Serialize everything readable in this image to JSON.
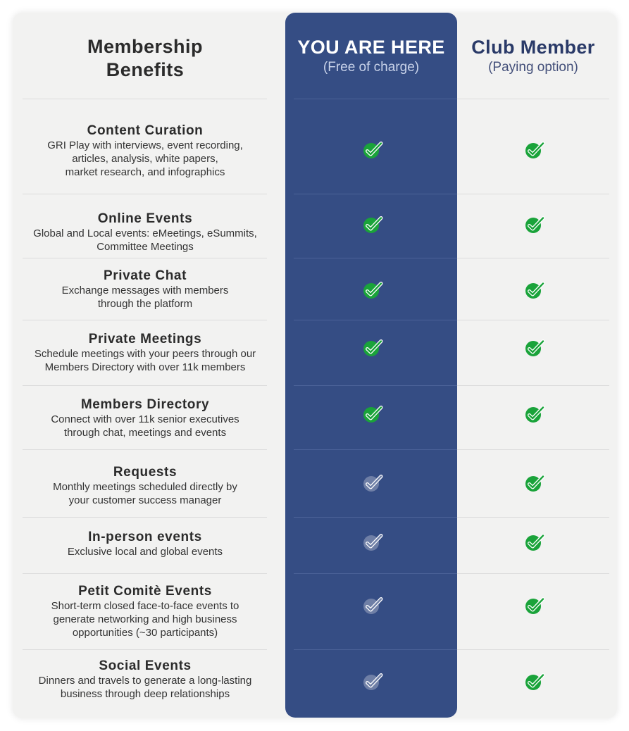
{
  "header": {
    "benefits_line1": "Membership",
    "benefits_line2": "Benefits"
  },
  "plans": {
    "free": {
      "title": "YOU ARE HERE",
      "subtitle": "(Free of charge)"
    },
    "paid": {
      "title": "Club Member",
      "subtitle": "(Paying option)"
    }
  },
  "colors": {
    "free_column": "#354d84",
    "check_included": "#1aa33a",
    "check_not_included": "#6f7fa6"
  },
  "benefits": [
    {
      "title": "Content Curation",
      "desc": [
        "GRI Play with interviews, event recording,",
        "articles, analysis, white papers,",
        "market research, and infographics"
      ],
      "free_included": true,
      "paid_included": true
    },
    {
      "title": "Online Events",
      "desc": [
        "Global and Local events: eMeetings, eSummits,",
        "Committee Meetings"
      ],
      "free_included": true,
      "paid_included": true
    },
    {
      "title": "Private Chat",
      "desc": [
        "Exchange messages with members",
        "through the platform"
      ],
      "free_included": true,
      "paid_included": true
    },
    {
      "title": "Private Meetings",
      "desc": [
        "Schedule meetings with your peers through our",
        "Members Directory with over 11k members"
      ],
      "free_included": true,
      "paid_included": true
    },
    {
      "title": "Members Directory",
      "desc": [
        "Connect with over 11k senior executives",
        "through chat, meetings and events"
      ],
      "free_included": true,
      "paid_included": true
    },
    {
      "title": "Requests",
      "desc": [
        "Monthly meetings scheduled directly by",
        "your customer success manager"
      ],
      "free_included": false,
      "paid_included": true
    },
    {
      "title": "In-person events",
      "desc": [
        "Exclusive local and global events"
      ],
      "free_included": false,
      "paid_included": true
    },
    {
      "title": "Petit Comitè Events",
      "desc": [
        "Short-term closed face-to-face events to",
        "generate networking and high business",
        "opportunities (~30 participants)"
      ],
      "free_included": false,
      "paid_included": true
    },
    {
      "title": "Social Events",
      "desc": [
        "Dinners and travels to generate a long-lasting",
        "business through deep relationships"
      ],
      "free_included": false,
      "paid_included": true
    }
  ]
}
